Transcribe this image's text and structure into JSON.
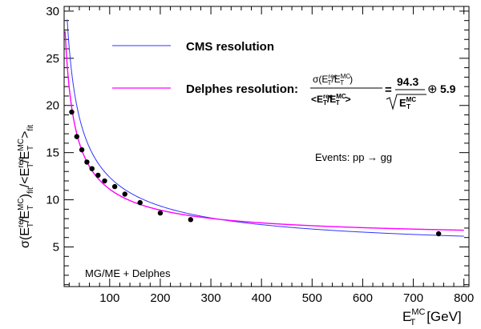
{
  "chart_data": {
    "type": "scatter",
    "xlim": [
      10,
      810
    ],
    "ylim": [
      0.8,
      30.5
    ],
    "x_ticks": [
      100,
      200,
      300,
      400,
      500,
      600,
      700,
      800
    ],
    "y_ticks": [
      5,
      10,
      15,
      20,
      25,
      30
    ],
    "xlabel": {
      "base": "E",
      "sub": "T",
      "sup": "MC",
      "unit": "[GeV]"
    },
    "ylabel_parts": [
      "σ(E",
      "rec",
      "T",
      "/E",
      "MC",
      "T",
      ")",
      "fit",
      "/<E",
      "rec",
      "T",
      "/E",
      "MC",
      "T",
      ">",
      "fit"
    ],
    "legend": [
      {
        "name": "CMS resolution",
        "color": "#3333ff"
      },
      {
        "name": "Delphes resolution:",
        "color": "#ff00ff"
      }
    ],
    "formula": {
      "a": "94.3",
      "oplus": "⊕",
      "b": "5.9"
    },
    "annotations": {
      "events": "Events: pp → gg",
      "generator": "MG/ME + Delphes"
    },
    "series": [
      {
        "name": "CMS resolution",
        "kind": "curve",
        "color": "#3333ff",
        "model": "sqrt((a/sqrt(E))^2 + (b/E)^2 + c^2)",
        "params": {
          "a": 115,
          "b": 5.6,
          "c": 4.6
        }
      },
      {
        "name": "Delphes resolution:",
        "kind": "curve",
        "color": "#ff00ff",
        "model": "sqrt((a/sqrt(E))^2 + b^2)",
        "params": {
          "a": 94.3,
          "b": 5.9
        }
      },
      {
        "kind": "points",
        "color": "#000000",
        "x": [
          25,
          35,
          45,
          55,
          65,
          77,
          90,
          110,
          130,
          160,
          200,
          260,
          750
        ],
        "y": [
          19.3,
          16.7,
          15.3,
          14.0,
          13.3,
          12.6,
          12.0,
          11.4,
          10.6,
          9.7,
          8.6,
          7.9,
          6.4
        ]
      }
    ]
  }
}
